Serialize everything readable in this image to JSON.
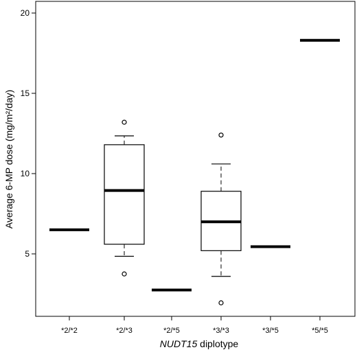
{
  "chart_data": {
    "type": "box",
    "xlabel_italic": "NUDT15",
    "xlabel_rest": " diplotype",
    "ylabel": "Average 6-MP dose (mg/m²/day)",
    "ylim": [
      1.5,
      21
    ],
    "yticks": [
      5,
      10,
      15,
      20
    ],
    "grid": false,
    "categories": [
      "*2/*2",
      "*2/*3",
      "*2/*5",
      "*3/*3",
      "*3/*5",
      "*5/*5"
    ],
    "boxes": [
      {
        "category": "*2/*2",
        "median": 6.5
      },
      {
        "category": "*2/*3",
        "whisker_low": 4.85,
        "q1": 5.6,
        "median": 8.95,
        "q3": 11.8,
        "whisker_high": 12.35,
        "outliers": [
          3.75,
          13.2
        ]
      },
      {
        "category": "*2/*5",
        "median": 2.75
      },
      {
        "category": "*3/*3",
        "whisker_low": 3.6,
        "q1": 5.2,
        "median": 7.0,
        "q3": 8.9,
        "whisker_high": 10.6,
        "outliers": [
          1.95,
          12.4
        ]
      },
      {
        "category": "*3/*5",
        "median": 5.45
      },
      {
        "category": "*5/*5",
        "median": 18.3
      }
    ]
  }
}
